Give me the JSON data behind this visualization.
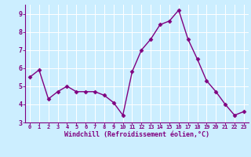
{
  "x": [
    0,
    1,
    2,
    3,
    4,
    5,
    6,
    7,
    8,
    9,
    10,
    11,
    12,
    13,
    14,
    15,
    16,
    17,
    18,
    19,
    20,
    21,
    22,
    23
  ],
  "y": [
    5.5,
    5.9,
    4.3,
    4.7,
    5.0,
    4.7,
    4.7,
    4.7,
    4.5,
    4.1,
    3.4,
    5.8,
    7.0,
    7.6,
    8.4,
    8.6,
    9.2,
    7.6,
    6.5,
    5.3,
    4.7,
    4.0,
    3.4,
    3.6
  ],
  "line_color": "#800080",
  "marker": "D",
  "markersize": 2.5,
  "linewidth": 1.0,
  "bg_color": "#cceeff",
  "grid_color": "#ffffff",
  "xlabel": "Windchill (Refroidissement éolien,°C)",
  "xlabel_color": "#800080",
  "tick_color": "#800080",
  "axis_color": "#800080",
  "ylim": [
    3.0,
    9.5
  ],
  "xlim": [
    -0.5,
    23.5
  ],
  "yticks": [
    3,
    4,
    5,
    6,
    7,
    8,
    9
  ],
  "xticks": [
    0,
    1,
    2,
    3,
    4,
    5,
    6,
    7,
    8,
    9,
    10,
    11,
    12,
    13,
    14,
    15,
    16,
    17,
    18,
    19,
    20,
    21,
    22,
    23
  ]
}
